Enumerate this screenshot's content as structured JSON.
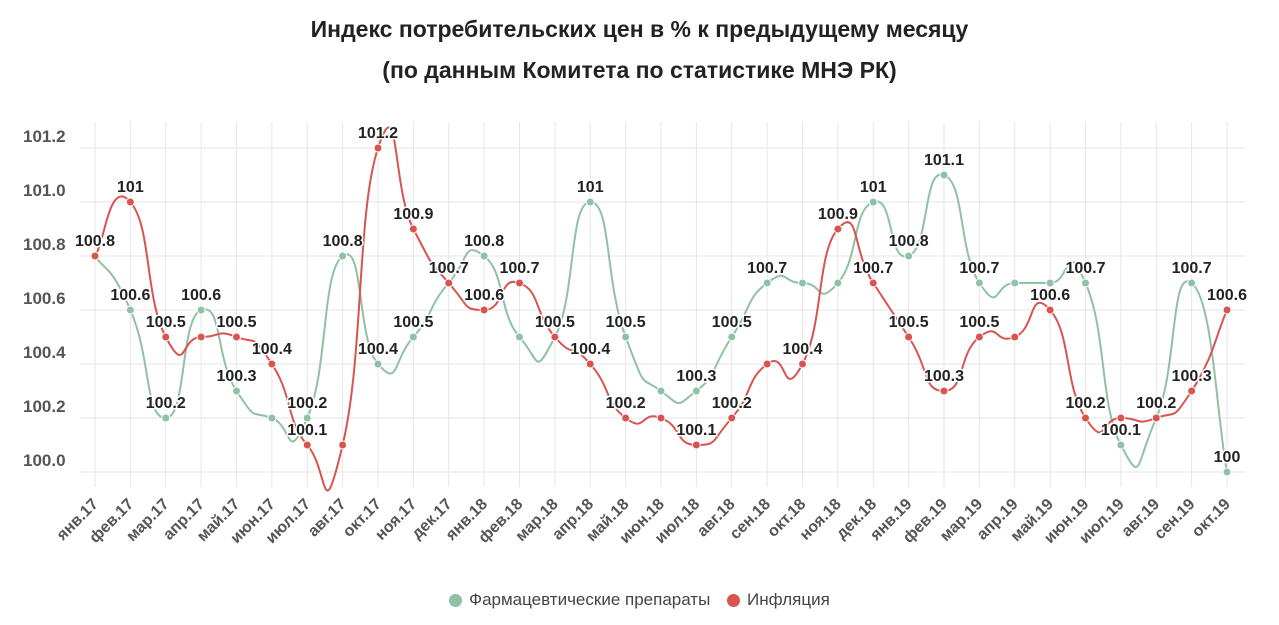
{
  "chart_data": {
    "type": "line",
    "title": "Индекс потребительских цен в % к предыдущему месяцу",
    "subtitle": "(по данным Комитета по статистике МНЭ РК)",
    "xlabel": "",
    "ylabel": "",
    "ylim": [
      100.0,
      101.2
    ],
    "y_ticks": [
      "100.0",
      "100.2",
      "100.4",
      "100.6",
      "100.8",
      "101.0",
      "101.2"
    ],
    "grid": true,
    "legend_position": "bottom",
    "categories": [
      "янв.17",
      "фев.17",
      "мар.17",
      "апр.17",
      "май.17",
      "июн.17",
      "июл.17",
      "авг.17",
      "окт.17",
      "ноя.17",
      "дек.17",
      "янв.18",
      "фев.18",
      "мар.18",
      "апр.18",
      "май.18",
      "июн.18",
      "июл.18",
      "авг.18",
      "сен.18",
      "окт.18",
      "ноя.18",
      "дек.18",
      "янв.19",
      "фев.19",
      "мар.19",
      "апр.19",
      "май.19",
      "июн.19",
      "июл.19",
      "авг.19",
      "сен.19",
      "окт.19"
    ],
    "series": [
      {
        "name": "Фармацевтические препараты",
        "color": "#8fc1a5",
        "values": [
          100.8,
          100.6,
          100.2,
          100.6,
          100.3,
          100.2,
          100.2,
          100.8,
          100.4,
          100.5,
          100.7,
          100.8,
          100.5,
          100.5,
          101,
          100.5,
          100.3,
          100.3,
          100.5,
          100.7,
          100.7,
          100.7,
          101,
          100.8,
          101.1,
          100.7,
          100.7,
          100.7,
          100.7,
          100.1,
          100.2,
          100.7,
          100
        ],
        "labels": [
          "100.8",
          "100.6",
          "100.2",
          "100.6",
          "100.3",
          "",
          "100.2",
          "100.8",
          "100.4",
          "100.5",
          "",
          "100.8",
          "",
          "100.5",
          "101",
          "100.5",
          "",
          "100.3",
          "100.5",
          "100.7",
          "",
          "",
          "101",
          "100.8",
          "101.1",
          "100.7",
          "",
          "",
          "100.7",
          "100.1",
          "",
          "100.7",
          "100"
        ]
      },
      {
        "name": "Инфляция",
        "color": "#d9534f",
        "values": [
          100.8,
          101,
          100.5,
          100.5,
          100.5,
          100.4,
          100.1,
          100.1,
          101.2,
          100.9,
          100.7,
          100.6,
          100.7,
          100.5,
          100.4,
          100.2,
          100.2,
          100.1,
          100.2,
          100.4,
          100.4,
          100.9,
          100.7,
          100.5,
          100.3,
          100.5,
          100.5,
          100.6,
          100.2,
          100.2,
          100.2,
          100.3,
          100.6
        ],
        "labels": [
          "",
          "101",
          "100.5",
          "",
          "100.5",
          "100.4",
          "100.1",
          "",
          "101.2",
          "100.9",
          "100.7",
          "100.6",
          "100.7",
          "",
          "100.4",
          "100.2",
          "",
          "100.1",
          "100.2",
          "",
          "100.4",
          "100.9",
          "100.7",
          "100.5",
          "100.3",
          "100.5",
          "",
          "100.6",
          "100.2",
          "",
          "100.2",
          "100.3",
          "100.6"
        ]
      }
    ]
  }
}
